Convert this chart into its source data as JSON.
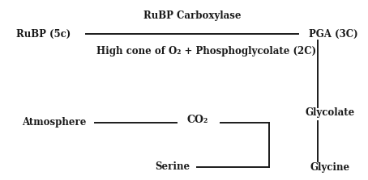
{
  "bg_color": "#ffffff",
  "text_color": "#1a1a1a",
  "rubp_label": "RuBP (5c)",
  "pga_label": "PGA (3C)",
  "enzyme_label": "RuBP Carboxylase",
  "high_conc_label": "High cone of O₂ + Phosphoglycolate (2C)",
  "atmosphere_label": "Atmosphere",
  "co2_label": "CO₂",
  "glycolate_label": "Glycolate",
  "glycine_label": "Glycine",
  "serine_label": "Serine",
  "lw": 1.4,
  "fontsize_main": 8.5,
  "fontsize_co2": 9.0
}
